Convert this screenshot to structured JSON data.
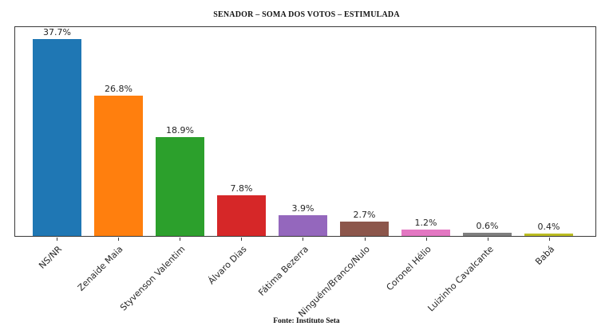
{
  "title": "SENADOR – SOMA DOS VOTOS – ESTIMULADA",
  "source_note": "Fonte: Instituto Seta",
  "chart_data": {
    "type": "bar",
    "title": "SENADOR – SOMA DOS VOTOS – ESTIMULADA",
    "categories": [
      "NS/NR",
      "Zenaide Maia",
      "Styvenson Valentim",
      "Álvaro Dias",
      "Fátima Bezerra",
      "Ninguém/Branco/Nulo",
      "Coronel Hélio",
      "Luizinho Cavalcante",
      "Babá"
    ],
    "values": [
      37.7,
      26.8,
      18.9,
      7.8,
      3.9,
      2.7,
      1.2,
      0.6,
      0.4
    ],
    "value_labels": [
      "37.7%",
      "26.8%",
      "18.9%",
      "7.8%",
      "3.9%",
      "2.7%",
      "1.2%",
      "0.6%",
      "0.4%"
    ],
    "bar_colors": [
      "#1f77b4",
      "#ff7f0e",
      "#2ca02c",
      "#d62728",
      "#9467bd",
      "#8c564b",
      "#e377c2",
      "#7f7f7f",
      "#bcbd22"
    ],
    "xlabel": "",
    "ylabel": "",
    "ylim": [
      0,
      39.8
    ],
    "grid": false,
    "legend": false,
    "x_tick_rotation_deg": 45,
    "annotation_source": "Fonte: Instituto Seta"
  }
}
